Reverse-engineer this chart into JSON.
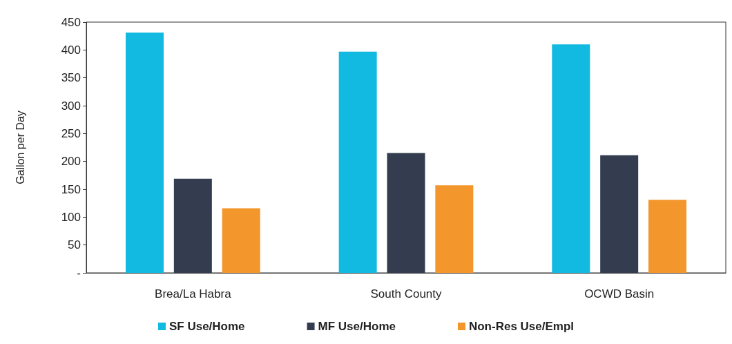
{
  "chart_data": {
    "type": "bar",
    "ylabel": "Gallon per Day",
    "categories": [
      "Brea/La Habra",
      "South County",
      "OCWD Basin"
    ],
    "series": [
      {
        "name": "SF Use/Home",
        "color": "#12b9e0",
        "values": [
          431,
          397,
          410
        ]
      },
      {
        "name": "MF Use/Home",
        "color": "#333d4f",
        "values": [
          169,
          215,
          211
        ]
      },
      {
        "name": "Non-Res Use/Empl",
        "color": "#f3962b",
        "values": [
          116,
          157,
          131
        ]
      }
    ],
    "ylim": [
      0,
      450
    ],
    "yticks": [
      {
        "value": 0,
        "label": "-"
      },
      50,
      100,
      150,
      200,
      250,
      300,
      350,
      400,
      450
    ],
    "grid": false,
    "legend": "bottom"
  }
}
